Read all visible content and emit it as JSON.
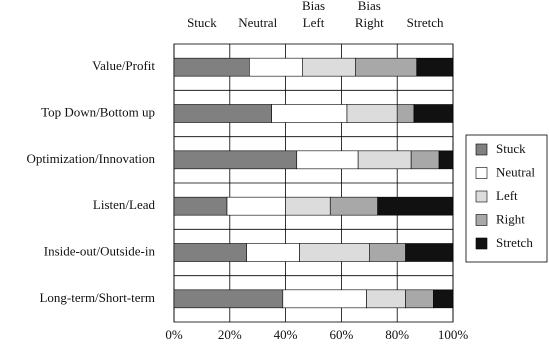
{
  "chart_data": {
    "type": "stacked-bar-horizontal",
    "column_labels": [
      "Stuck",
      "Neutral",
      "Bias\nLeft",
      "Bias\nRight",
      "Stretch"
    ],
    "categories": [
      "Value/Profit",
      "Top Down/Bottom up",
      "Optimization/Innovation",
      "Listen/Lead",
      "Inside-out/Outside-in",
      "Long-term/Short-term"
    ],
    "series": [
      {
        "name": "Stuck",
        "color": "#808080",
        "values": [
          27,
          35,
          44,
          19,
          26,
          39
        ]
      },
      {
        "name": "Neutral",
        "color": "#ffffff",
        "values": [
          19,
          27,
          22,
          21,
          19,
          30
        ]
      },
      {
        "name": "Left",
        "color": "#dcdcdc",
        "values": [
          19,
          18,
          19,
          16,
          25,
          14
        ]
      },
      {
        "name": "Right",
        "color": "#a8a8a8",
        "values": [
          22,
          6,
          10,
          17,
          13,
          10
        ]
      },
      {
        "name": "Stretch",
        "color": "#111111",
        "values": [
          13,
          14,
          5,
          27,
          17,
          7
        ]
      }
    ],
    "xlim": [
      0,
      100
    ],
    "xticks": [
      {
        "value": 0,
        "label": "0%"
      },
      {
        "value": 20,
        "label": "20%"
      },
      {
        "value": 40,
        "label": "40%"
      },
      {
        "value": 60,
        "label": "60%"
      },
      {
        "value": 80,
        "label": "80%"
      },
      {
        "value": 100,
        "label": "100%"
      }
    ],
    "grid": true,
    "legend": "right"
  }
}
